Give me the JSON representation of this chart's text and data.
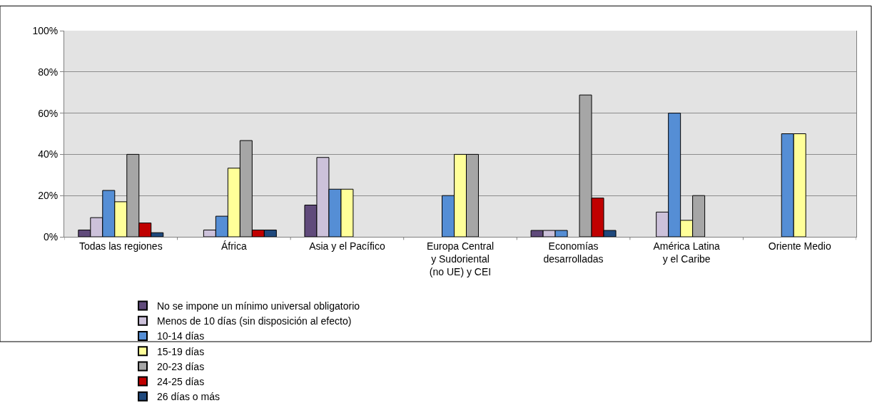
{
  "chart_data": {
    "type": "bar",
    "categories": [
      "Todas las regiones",
      "África",
      "Asia y el Pacífico",
      "Europa Central\ny Sudoriental\n(no UE) y CEI",
      "Economías\ndesarrolladas",
      "América Latina\ny el Caribe",
      "Oriente Medio"
    ],
    "series": [
      {
        "name": "No se impone un mínimo universal obligatorio",
        "color": "#604a7b",
        "values": [
          3.3,
          null,
          15.4,
          null,
          3.1,
          null,
          null
        ]
      },
      {
        "name": "Menos de 10 días (sin disposición al efecto)",
        "color": "#ccc1da",
        "values": [
          9.3,
          3.3,
          38.5,
          null,
          3.1,
          12,
          null
        ]
      },
      {
        "name": "10-14 días",
        "color": "#558ed5",
        "values": [
          22.5,
          10,
          23.1,
          20,
          3.1,
          60,
          50
        ]
      },
      {
        "name": "15-19 días",
        "color": "#ffff99",
        "values": [
          17,
          33.3,
          23.1,
          40,
          null,
          8,
          50
        ]
      },
      {
        "name": "20-23 días",
        "color": "#a6a6a6",
        "values": [
          40,
          46.7,
          null,
          40,
          68.8,
          20,
          null
        ]
      },
      {
        "name": "24-25 días",
        "color": "#c00000",
        "values": [
          6.7,
          3.3,
          null,
          null,
          18.8,
          null,
          null
        ]
      },
      {
        "name": "26 días o más",
        "color": "#1f497d",
        "values": [
          2,
          3.3,
          null,
          null,
          3.1,
          null,
          null
        ]
      }
    ],
    "ylim": [
      0,
      100
    ],
    "yticks": [
      {
        "value": 0,
        "label": "0%"
      },
      {
        "value": 20,
        "label": "20%"
      },
      {
        "value": 40,
        "label": "40%"
      },
      {
        "value": 60,
        "label": "60%"
      },
      {
        "value": 80,
        "label": "80%"
      },
      {
        "value": 100,
        "label": "100%"
      }
    ],
    "grid": "y",
    "legend": "bottom"
  }
}
